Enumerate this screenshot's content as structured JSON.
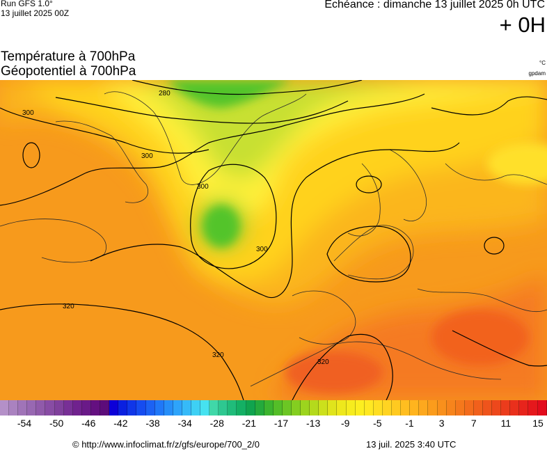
{
  "header": {
    "run": "Run GFS 1.0°",
    "run_date": "13 juillet 2025 00Z",
    "echeance": "Echéance : dimanche 13 juillet 2025 0h UTC",
    "offset": "+ 0H",
    "title_line1": "Température à 700hPa",
    "title_line2": "Géopotentiel à 700hPa",
    "unit_temp": "°C",
    "unit_geo": "gpdam"
  },
  "map": {
    "contour_labels": [
      "280",
      "300",
      "300",
      "300",
      "300",
      "320",
      "320",
      "320"
    ],
    "colors": {
      "orange": "#f79a1c",
      "yellow": "#ffd21a",
      "light_yellow": "#fff03a",
      "green": "#52c42a",
      "red_orange": "#f56a22"
    }
  },
  "colorbar": {
    "colors": [
      "#b490c8",
      "#aa82c0",
      "#a074b8",
      "#9868b2",
      "#905aaa",
      "#884ca4",
      "#80409c",
      "#783096",
      "#70228e",
      "#6a1a88",
      "#641080",
      "#5c0c7a",
      "#0c00d8",
      "#0a20e0",
      "#1036e8",
      "#164cf0",
      "#1c62f4",
      "#2078f8",
      "#268ef8",
      "#2ea4fa",
      "#36baf8",
      "#3ed0f4",
      "#46e2f0",
      "#40d8a8",
      "#2ec890",
      "#20bc7a",
      "#14b064",
      "#10a44e",
      "#24aa3c",
      "#3cb42e",
      "#54be28",
      "#6cc624",
      "#84ce20",
      "#9cd41e",
      "#b4da1c",
      "#cce01c",
      "#e0e41c",
      "#eee81c",
      "#f6ec1e",
      "#fcee20",
      "#ffe822",
      "#ffde22",
      "#ffd422",
      "#ffca20",
      "#ffbe20",
      "#ffb41e",
      "#fda81e",
      "#fb9c1c",
      "#f9901c",
      "#f7841c",
      "#f5781c",
      "#f36c1c",
      "#f1601c",
      "#ef541c",
      "#ed481c",
      "#eb3c1c",
      "#e9301c",
      "#e7241c",
      "#e5181c",
      "#e30c1c"
    ],
    "tick_labels": [
      "-54",
      "-50",
      "-46",
      "-42",
      "-38",
      "-34",
      "-28",
      "-21",
      "-17",
      "-13",
      "-9",
      "-5",
      "-1",
      "3",
      "7",
      "11",
      "15"
    ]
  },
  "footer": {
    "copyright": "© http://www.infoclimat.fr/z/gfs/europe/700_2/0",
    "timestamp": "13 juil. 2025  3:40 UTC"
  }
}
